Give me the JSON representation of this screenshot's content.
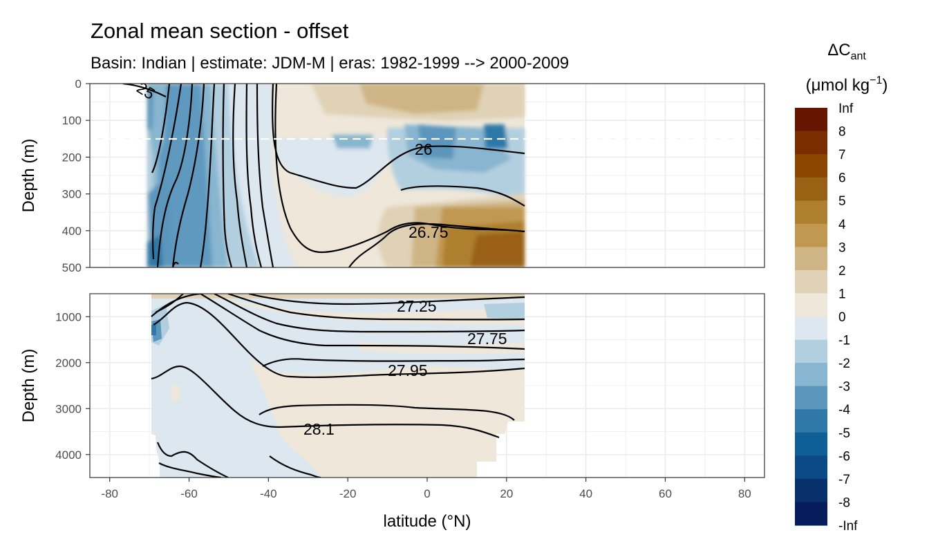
{
  "chart_data": {
    "type": "heatmap",
    "title": "Zonal mean section - offset",
    "subtitle": "Basin: Indian | estimate: JDM-M | eras: 1982-1999 --> 2000-2009",
    "xlabel": "latitude (°N)",
    "ylabel": "Depth (m)",
    "x_ticks": [
      "-80",
      "-60",
      "-40",
      "-20",
      "0",
      "20",
      "40",
      "60",
      "80"
    ],
    "xlim": [
      -85,
      85
    ],
    "panels": [
      {
        "name": "upper",
        "ylim": [
          500,
          0
        ],
        "y_ticks": [
          "0",
          "100",
          "200",
          "300",
          "400",
          "500"
        ],
        "dashed_line_depth": 150,
        "contour_labels": [
          "25",
          "26",
          "26.75"
        ]
      },
      {
        "name": "lower",
        "ylim": [
          4500,
          500
        ],
        "y_ticks": [
          "1000",
          "2000",
          "3000",
          "4000"
        ],
        "contour_labels": [
          "27.25",
          "27.75",
          "27.95",
          "28.1"
        ]
      }
    ],
    "data_lat_range": [
      -70,
      24.5
    ],
    "legend": {
      "title_prefix": "ΔC",
      "title_sub": "ant",
      "unit_prefix": "(μmol kg",
      "unit_sup": "−1",
      "unit_suffix": ")",
      "labels": [
        "Inf",
        "8",
        "7",
        "6",
        "5",
        "4",
        "3",
        "2",
        "1",
        "0",
        "-1",
        "-2",
        "-3",
        "-4",
        "-5",
        "-6",
        "-7",
        "-8",
        "-Inf"
      ],
      "colors": [
        "#671500",
        "#7a2d00",
        "#8c4600",
        "#996114",
        "#ad7f2f",
        "#c09850",
        "#cfb585",
        "#e0d2b6",
        "#eee7da",
        "#dce7ef",
        "#b2cfe0",
        "#88b5cf",
        "#5b96bd",
        "#2f78a8",
        "#0e5f97",
        "#0b4a86",
        "#08306b",
        "#061d5c"
      ]
    },
    "contour_levels": [
      "25",
      "26",
      "26.75",
      "27.25",
      "27.75",
      "27.95",
      "28.1"
    ]
  }
}
